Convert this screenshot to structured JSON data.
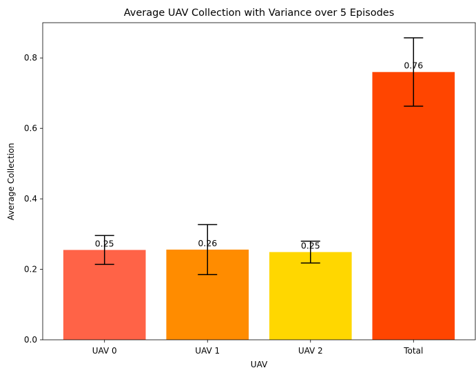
{
  "chart_data": {
    "type": "bar",
    "title": "Average UAV Collection with Variance over 5 Episodes",
    "xlabel": "UAV",
    "ylabel": "Average Collection",
    "categories": [
      "UAV 0",
      "UAV 1",
      "UAV 2",
      "Total"
    ],
    "values": [
      0.255,
      0.256,
      0.249,
      0.76
    ],
    "errors": [
      0.041,
      0.071,
      0.031,
      0.097
    ],
    "value_labels": [
      "0.25",
      "0.26",
      "0.25",
      "0.76"
    ],
    "colors": [
      "#ff6347",
      "#ff8c00",
      "#ffd700",
      "#ff4500"
    ],
    "ylim": [
      0,
      0.9
    ],
    "yticks": [
      0.0,
      0.2,
      0.4,
      0.6,
      0.8
    ],
    "ytick_labels": [
      "0.0",
      "0.2",
      "0.4",
      "0.6",
      "0.8"
    ],
    "grid": false,
    "legend": "none"
  }
}
